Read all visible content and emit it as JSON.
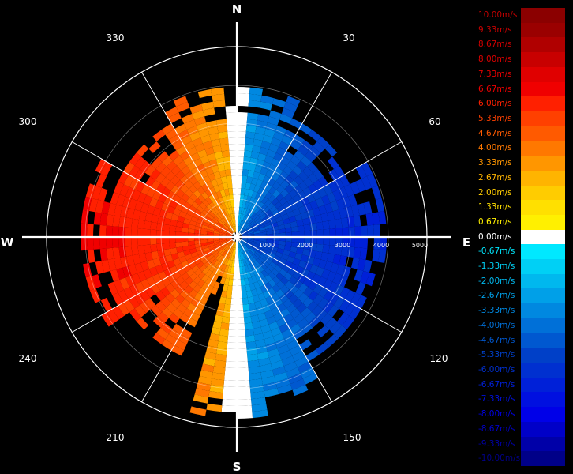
{
  "radar": {
    "cardinals": {
      "north": "N",
      "east": "E",
      "south": "S",
      "west": "W"
    },
    "bearings": [
      "30",
      "60",
      "120",
      "150",
      "210",
      "240",
      "300",
      "330"
    ],
    "range_rings": [
      "1000",
      "2000",
      "3000",
      "4000",
      "5000"
    ]
  },
  "legend": {
    "entries": [
      {
        "label": "10.00m/s",
        "color": "#8b0000",
        "text_color": "#c00000"
      },
      {
        "label": "9.33m/s",
        "color": "#9a0000",
        "text_color": "#c80000"
      },
      {
        "label": "8.67m/s",
        "color": "#b00000",
        "text_color": "#d00000"
      },
      {
        "label": "8.00m/s",
        "color": "#c80000",
        "text_color": "#dc0000"
      },
      {
        "label": "7.33m/s",
        "color": "#e00000",
        "text_color": "#e80000"
      },
      {
        "label": "6.67m/s",
        "color": "#f00000",
        "text_color": "#f00000"
      },
      {
        "label": "6.00m/s",
        "color": "#ff2000",
        "text_color": "#ff2000"
      },
      {
        "label": "5.33m/s",
        "color": "#ff4000",
        "text_color": "#ff4000"
      },
      {
        "label": "4.67m/s",
        "color": "#ff5a00",
        "text_color": "#ff5a00"
      },
      {
        "label": "4.00m/s",
        "color": "#ff7800",
        "text_color": "#ff7800"
      },
      {
        "label": "3.33m/s",
        "color": "#ff9600",
        "text_color": "#ff9600"
      },
      {
        "label": "2.67m/s",
        "color": "#ffb400",
        "text_color": "#ffb400"
      },
      {
        "label": "2.00m/s",
        "color": "#ffcc00",
        "text_color": "#ffcc00"
      },
      {
        "label": "1.33m/s",
        "color": "#ffe000",
        "text_color": "#ffe000"
      },
      {
        "label": "0.67m/s",
        "color": "#fff000",
        "text_color": "#fff000"
      },
      {
        "label": "0.00m/s",
        "color": "#ffffff",
        "text_color": "#ffffff"
      },
      {
        "label": "-0.67m/s",
        "color": "#00e8ff",
        "text_color": "#00e8ff"
      },
      {
        "label": "-1.33m/s",
        "color": "#00d0f5",
        "text_color": "#00d0f5"
      },
      {
        "label": "-2.00m/s",
        "color": "#00b8ee",
        "text_color": "#00b8ee"
      },
      {
        "label": "-2.67m/s",
        "color": "#00a0e8",
        "text_color": "#00a0e8"
      },
      {
        "label": "-3.33m/s",
        "color": "#0088e0",
        "text_color": "#0088e0"
      },
      {
        "label": "-4.00m/s",
        "color": "#0070d8",
        "text_color": "#0070d8"
      },
      {
        "label": "-4.67m/s",
        "color": "#0058d0",
        "text_color": "#0058d0"
      },
      {
        "label": "-5.33m/s",
        "color": "#0040c8",
        "text_color": "#0040c8"
      },
      {
        "label": "-6.00m/s",
        "color": "#0030d0",
        "text_color": "#0030d0"
      },
      {
        "label": "-6.67m/s",
        "color": "#0020d8",
        "text_color": "#0020d8"
      },
      {
        "label": "-7.33m/s",
        "color": "#0010e0",
        "text_color": "#0010e0"
      },
      {
        "label": "-8.00m/s",
        "color": "#0000e8",
        "text_color": "#0000e8"
      },
      {
        "label": "-8.67m/s",
        "color": "#0000c8",
        "text_color": "#0000c8"
      },
      {
        "label": "-9.33m/s",
        "color": "#0000a8",
        "text_color": "#0000a8"
      },
      {
        "label": "-10.00m/s",
        "color": "#000088",
        "text_color": "#000088"
      }
    ]
  }
}
